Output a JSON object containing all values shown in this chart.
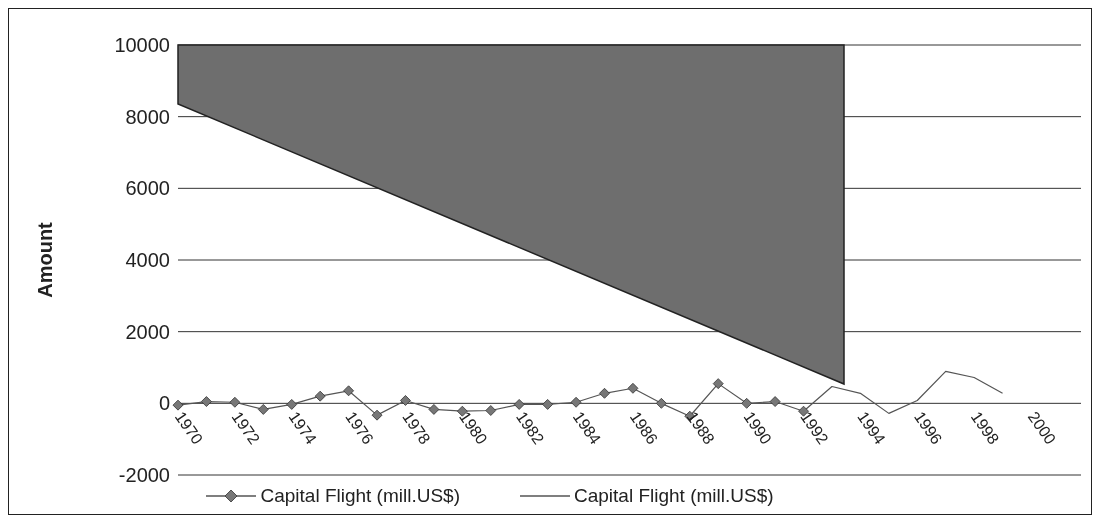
{
  "chart_data": {
    "type": "line",
    "ylabel": "Amount",
    "categories": [
      "1970",
      null,
      "1972",
      null,
      "1974",
      null,
      "1976",
      null,
      "1978",
      null,
      "1980",
      null,
      "1982",
      null,
      "1984",
      null,
      "1986",
      null,
      "1988",
      null,
      "1990",
      null,
      "1992",
      null,
      "1994",
      null,
      "1996",
      null,
      "1998",
      null,
      "2000"
    ],
    "series": [
      {
        "name": "Capital Flight (mill.US$)",
        "color": "#555555",
        "marker": "diamond",
        "values": [
          -50,
          50,
          30,
          -170,
          -30,
          200,
          350,
          -330,
          80,
          -170,
          -220,
          -200,
          -30,
          -30,
          30,
          280,
          420,
          0,
          -360,
          550,
          0,
          50,
          -220,
          null,
          null,
          null,
          null,
          null,
          null,
          null,
          null
        ]
      },
      {
        "name": "Capital Flight (mill.US$)",
        "color": "#555555",
        "marker": "none",
        "values": [
          null,
          null,
          null,
          null,
          null,
          null,
          null,
          null,
          null,
          null,
          null,
          null,
          null,
          null,
          null,
          null,
          null,
          null,
          null,
          null,
          null,
          null,
          -220,
          470,
          280,
          -280,
          80,
          890,
          720,
          280,
          null
        ]
      }
    ],
    "ylim": [
      -2000,
      10000
    ],
    "yticks": [
      -2000,
      0,
      2000,
      4000,
      6000,
      8000,
      10000
    ],
    "grid": "y",
    "legend": "bottom"
  }
}
